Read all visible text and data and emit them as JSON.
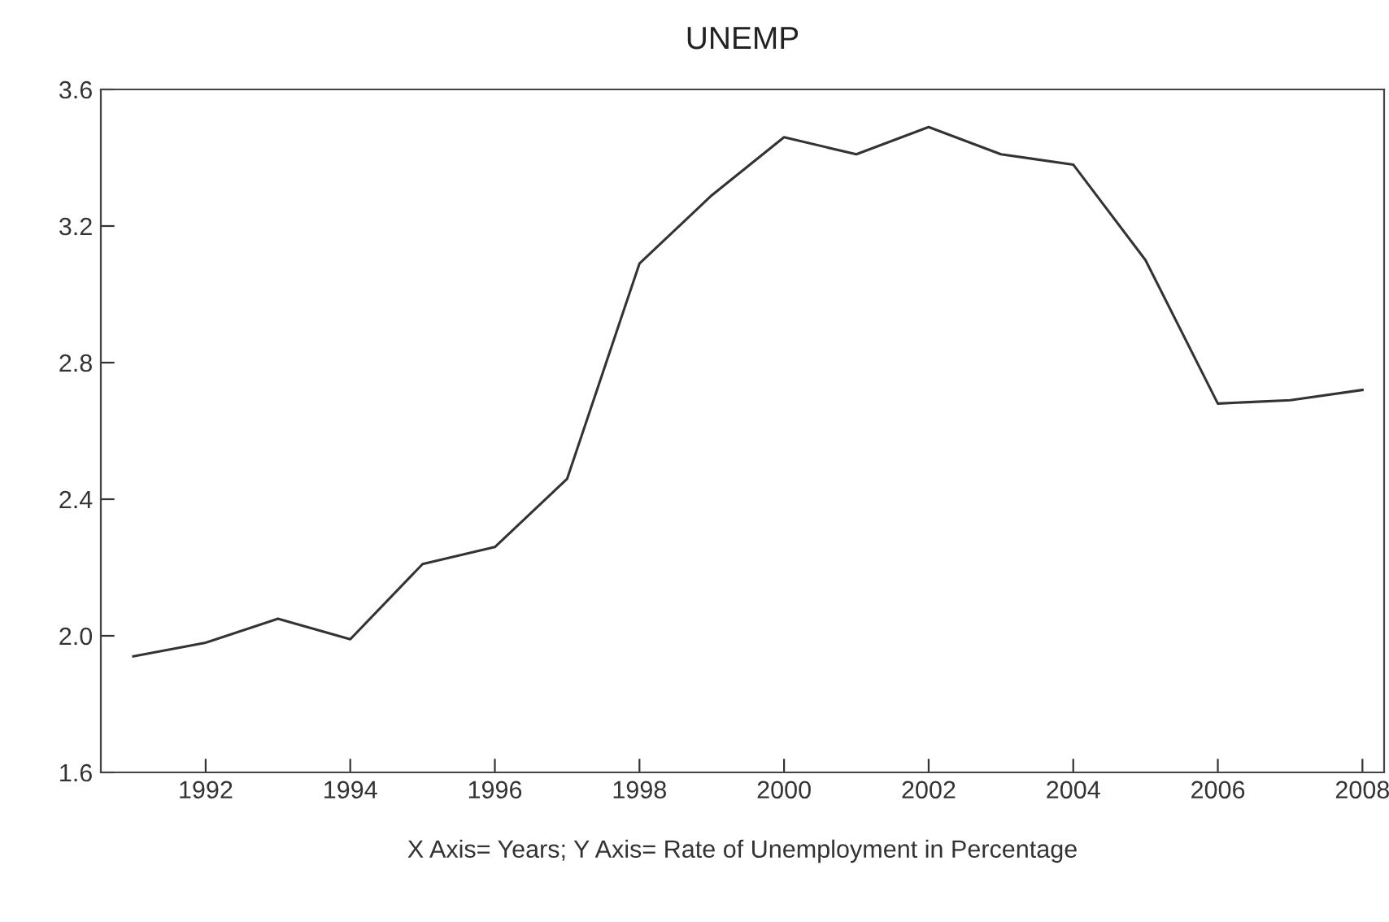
{
  "chart_data": {
    "type": "line",
    "title": "UNEMP",
    "xlabel": "X Axis= Years; Y Axis= Rate of Unemployment in Percentage",
    "x": [
      1991,
      1992,
      1993,
      1994,
      1995,
      1996,
      1997,
      1998,
      1999,
      2000,
      2001,
      2002,
      2003,
      2004,
      2005,
      2006,
      2007,
      2008
    ],
    "series": [
      {
        "color": "#333333",
        "values": [
          1.94,
          1.98,
          2.05,
          1.99,
          2.21,
          2.26,
          2.46,
          3.09,
          3.29,
          3.46,
          3.41,
          3.49,
          3.41,
          3.38,
          3.1,
          2.68,
          2.69,
          2.72
        ]
      }
    ],
    "xlim": [
      1990.55,
      2008.3
    ],
    "xticks": [
      1992,
      1994,
      1996,
      1998,
      2000,
      2002,
      2004,
      2006,
      2008
    ],
    "ylim": [
      1.6,
      3.6
    ],
    "yticks": [
      {
        "value": 1.6,
        "label": "1.6"
      },
      {
        "value": 2.0,
        "label": "2.0"
      },
      {
        "value": 2.4,
        "label": "2.4"
      },
      {
        "value": 2.8,
        "label": "2.8"
      },
      {
        "value": 3.2,
        "label": "3.2"
      },
      {
        "value": 3.6,
        "label": "3.6"
      }
    ],
    "grid": false,
    "marker": "none",
    "line_style": "solid"
  }
}
